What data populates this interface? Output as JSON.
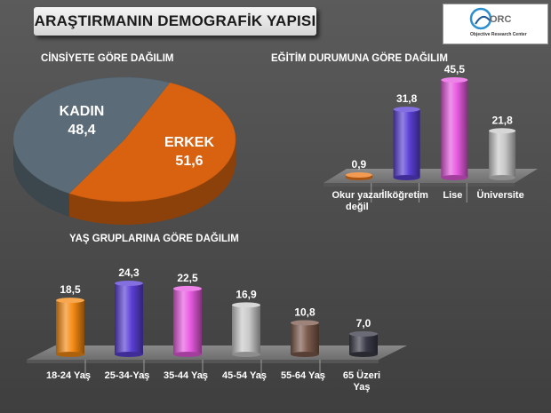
{
  "page": {
    "title": "ARAŞTIRMANIN DEMOGRAFİK YAPISI",
    "logo": {
      "mark": "ORC",
      "subtitle": "Objective Research Center"
    }
  },
  "sections": {
    "gender": "CİNSİYETE GÖRE DAĞILIM",
    "education": "EĞİTİM DURUMUNA GÖRE DAĞILIM",
    "age": "YAŞ GRUPLARINA GÖRE DAĞILIM"
  },
  "chart_data": [
    {
      "id": "gender",
      "type": "pie",
      "title": "CİNSİYETE GÖRE DAĞILIM",
      "slices": [
        {
          "label": "KADIN",
          "value": 48.4,
          "display": "48,4",
          "color": "#5b6b77"
        },
        {
          "label": "ERKEK",
          "value": 51.6,
          "display": "51,6",
          "color": "#d8620f"
        }
      ]
    },
    {
      "id": "education",
      "type": "bar",
      "title": "EĞİTİM DURUMUNA GÖRE DAĞILIM",
      "categories": [
        "Okur yazar\ndeğil",
        "İlköğretim",
        "Lise",
        "Üniversite"
      ],
      "values": [
        0.9,
        31.8,
        45.5,
        21.8
      ],
      "value_labels": [
        "0,9",
        "31,8",
        "45,5",
        "21,8"
      ],
      "colors": [
        "#f07a1a",
        "#5b3fd6",
        "#e75ae0",
        "#c9c9c9"
      ],
      "ylim": [
        0,
        45.5
      ],
      "grid": false
    },
    {
      "id": "age",
      "type": "bar",
      "title": "YAŞ GRUPLARINA GÖRE DAĞILIM",
      "categories": [
        "18-24 Yaş",
        "25-34-Yaş",
        "35-44 Yaş",
        "45-54 Yaş",
        "55-64 Yaş",
        "65 Üzeri\nYaş"
      ],
      "values": [
        18.5,
        24.3,
        22.5,
        16.9,
        10.8,
        7.0
      ],
      "value_labels": [
        "18,5",
        "24,3",
        "22,5",
        "16,9",
        "10,8",
        "7,0"
      ],
      "colors": [
        "#f58a13",
        "#5b3fd6",
        "#e75ae0",
        "#c9c9c9",
        "#7c5a4c",
        "#3a3a48"
      ],
      "ylim": [
        0,
        24.3
      ],
      "grid": false
    }
  ]
}
